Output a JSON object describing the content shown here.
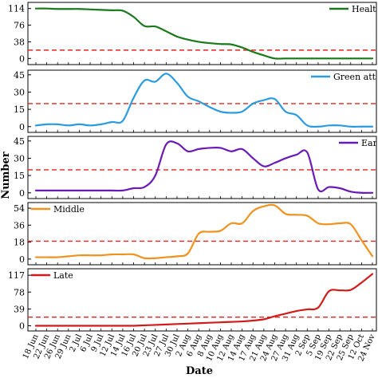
{
  "chart_data": {
    "type": "line",
    "xlabel": "Date",
    "ylabel": "Number",
    "x": [
      "18 Jun",
      "22 Jun",
      "26 Jun",
      "29 Jun",
      "2 Jul",
      "6 Jul",
      "9 Jul",
      "12 Jul",
      "14 Jul",
      "16 Jul",
      "20 Jul",
      "23 Jul",
      "27 Jul",
      "30 Jul",
      "2 Aug",
      "6 Aug",
      "8 Aug",
      "10 Aug",
      "12 Aug",
      "14 Aug",
      "17 Aug",
      "21 Aug",
      "24 Aug",
      "27 Aug",
      "31 Aug",
      "2 Sep",
      "5 Sep",
      "19 Sep",
      "22 Sep",
      "25 Sep",
      "12 Oct",
      "24 Nov"
    ],
    "threshold_color": "#e3261f",
    "panels": [
      {
        "series": {
          "name": "Healthy",
          "color": "#1a7a1a",
          "values": [
            114,
            114,
            113,
            113,
            113,
            112,
            111,
            110,
            109,
            95,
            74,
            73,
            62,
            50,
            43,
            38,
            35,
            33,
            32,
            25,
            15,
            7,
            0,
            0,
            0,
            0,
            0,
            0,
            0,
            0,
            0,
            0
          ]
        },
        "yticks": [
          0,
          38,
          76,
          114
        ],
        "ylim": [
          -14,
          128
        ],
        "threshold": 19
      },
      {
        "series": {
          "name": "Green attack",
          "color": "#2b9be0",
          "values": [
            1,
            2,
            2,
            1,
            2,
            1,
            2,
            4,
            5,
            25,
            40,
            39,
            46,
            38,
            26,
            22,
            17,
            13,
            12,
            13,
            20,
            23,
            24,
            13,
            10,
            1,
            0,
            1,
            1,
            0,
            0,
            0
          ]
        },
        "yticks": [
          0,
          15,
          30,
          45
        ],
        "ylim": [
          -5,
          49
        ],
        "threshold": 20
      },
      {
        "series": {
          "name": "Early",
          "color": "#6a1ab5",
          "values": [
            2,
            2,
            2,
            2,
            2,
            2,
            2,
            2,
            2,
            4,
            5,
            15,
            42,
            43,
            36,
            38,
            39,
            39,
            36,
            38,
            30,
            23,
            26,
            30,
            33,
            35,
            3,
            5,
            4,
            1,
            0,
            0
          ]
        },
        "yticks": [
          0,
          15,
          30,
          45
        ],
        "ylim": [
          -5,
          49
        ],
        "threshold": 20
      },
      {
        "series": {
          "name": "Middle",
          "color": "#f0921e",
          "values": [
            2,
            2,
            2,
            3,
            4,
            4,
            4,
            5,
            5,
            5,
            1,
            1,
            2,
            3,
            6,
            27,
            29,
            30,
            38,
            38,
            51,
            56,
            57,
            48,
            47,
            46,
            38,
            37,
            38,
            37,
            20,
            3
          ]
        },
        "yticks": [
          0,
          18,
          36,
          54
        ],
        "ylim": [
          -6,
          60
        ],
        "threshold": 19
      },
      {
        "series": {
          "name": "Late",
          "color": "#d11a1a",
          "values": [
            0,
            0,
            0,
            0,
            0,
            0,
            0,
            0,
            0,
            0,
            1,
            2,
            3,
            4,
            5,
            6,
            7,
            8,
            9,
            10,
            12,
            15,
            22,
            28,
            34,
            38,
            42,
            80,
            82,
            83,
            100,
            120
          ]
        },
        "yticks": [
          0,
          39,
          78,
          117
        ],
        "ylim": [
          -12,
          132
        ],
        "threshold": 20
      }
    ]
  }
}
